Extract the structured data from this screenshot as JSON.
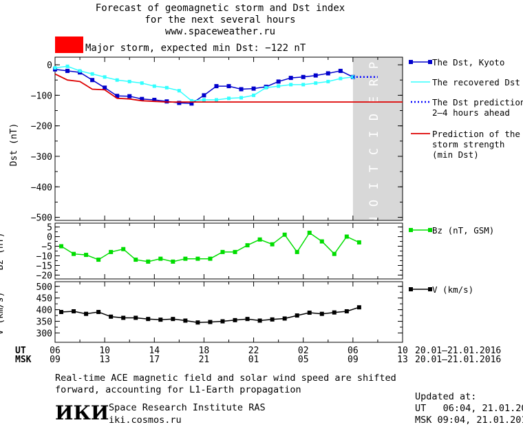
{
  "header": {
    "title_line1": "Forecast of geomagnetic storm and Dst index",
    "title_line2": "for the next several hours",
    "title_line3": "www.spaceweather.ru",
    "storm_label": "Major storm, expected min Dst: −122 nT",
    "storm_color": "#ff0000"
  },
  "colors": {
    "dst": "#0000cc",
    "recovered": "#33ffff",
    "prediction_dots": "#0000ff",
    "min_dst": "#dd0000",
    "bz": "#00dd00",
    "v": "#000000",
    "prediction_zone": "#d8d8d8"
  },
  "prediction_band_label": "PREDICTION",
  "legend": {
    "dst": "The Dst, Kyoto",
    "recovered": "The recovered Dst",
    "prediction_l1": "The Dst prediction",
    "prediction_l2": "2–4 hours ahead",
    "min_l1": "Prediction of the",
    "min_l2": "storm strength",
    "min_l3": "(min Dst)",
    "bz": "Bz (nT, GSM)",
    "v": "V (km/s)"
  },
  "axes": {
    "ut_label": "UT",
    "msk_label": "MSK",
    "ut_ticks": [
      "06",
      "10",
      "14",
      "18",
      "22",
      "02",
      "06",
      "10"
    ],
    "msk_ticks": [
      "09",
      "13",
      "17",
      "21",
      "01",
      "05",
      "09",
      "13"
    ],
    "ut_range": "20.01–21.01.2016",
    "msk_range": "20.01–21.01.2016"
  },
  "chart_data": [
    {
      "type": "line",
      "ylabel": "Dst (nT)",
      "ylim": [
        -510,
        25
      ],
      "xlim_hours": [
        0,
        28
      ],
      "yticks": [
        "0",
        "−100",
        "−200",
        "−300",
        "−400",
        "−500"
      ],
      "prediction_zone_hours": [
        24,
        28
      ],
      "series": [
        {
          "name": "The Dst, Kyoto",
          "x": [
            0,
            1,
            2,
            3,
            4,
            5,
            6,
            7,
            8,
            9,
            10,
            11,
            12,
            13,
            14,
            15,
            16,
            17,
            18,
            19,
            20,
            21,
            22,
            23,
            24
          ],
          "y": [
            -15,
            -20,
            -25,
            -50,
            -75,
            -102,
            -103,
            -112,
            -115,
            -120,
            -125,
            -127,
            -100,
            -70,
            -70,
            -80,
            -78,
            -72,
            -55,
            -43,
            -40,
            -35,
            -28,
            -20,
            -40
          ]
        },
        {
          "name": "The recovered Dst",
          "x": [
            0,
            1,
            2,
            3,
            4,
            5,
            6,
            7,
            8,
            9,
            10,
            11,
            12,
            13,
            14,
            15,
            16,
            17,
            18,
            19,
            20,
            21,
            22,
            23,
            24
          ],
          "y": [
            -10,
            -5,
            -20,
            -30,
            -40,
            -50,
            -55,
            -60,
            -70,
            -75,
            -85,
            -118,
            -115,
            -115,
            -110,
            -108,
            -100,
            -75,
            -70,
            -65,
            -65,
            -60,
            -55,
            -45,
            -40
          ]
        },
        {
          "name": "The Dst prediction 2–4 hours ahead",
          "x": [
            24,
            26
          ],
          "y": [
            -40,
            -40
          ]
        },
        {
          "name": "Prediction of the storm strength (min Dst)",
          "x": [
            0,
            1,
            2,
            3,
            4,
            5,
            6,
            7,
            8,
            9,
            10,
            11,
            28
          ],
          "y": [
            -30,
            -50,
            -55,
            -80,
            -82,
            -110,
            -112,
            -118,
            -120,
            -122,
            -122,
            -122,
            -122
          ]
        }
      ]
    },
    {
      "type": "line",
      "ylabel": "Bz (nT)",
      "ylim": [
        -22,
        7
      ],
      "yticks": [
        "5",
        "0",
        "−5",
        "−10",
        "−15",
        "−20"
      ],
      "series": [
        {
          "name": "Bz (nT, GSM)",
          "x": [
            0.5,
            1.5,
            2.5,
            3.5,
            4.5,
            5.5,
            6.5,
            7.5,
            8.5,
            9.5,
            10.5,
            11.5,
            12.5,
            13.5,
            14.5,
            15.5,
            16.5,
            17.5,
            18.5,
            19.5,
            20.5,
            21.5,
            22.5,
            23.5,
            24.5
          ],
          "y": [
            -5,
            -9,
            -9.5,
            -12,
            -8,
            -6.5,
            -12,
            -13,
            -11.5,
            -13,
            -11.5,
            -11.5,
            -11.5,
            -8,
            -8,
            -4.5,
            -1.5,
            -4,
            1,
            -8,
            2,
            -2.5,
            -9,
            0,
            -3
          ]
        }
      ]
    },
    {
      "type": "line",
      "ylabel": "V (km/s)",
      "ylim": [
        260,
        520
      ],
      "yticks": [
        "500",
        "450",
        "400",
        "350",
        "300"
      ],
      "series": [
        {
          "name": "V (km/s)",
          "x": [
            0.5,
            1.5,
            2.5,
            3.5,
            4.5,
            5.5,
            6.5,
            7.5,
            8.5,
            9.5,
            10.5,
            11.5,
            12.5,
            13.5,
            14.5,
            15.5,
            16.5,
            17.5,
            18.5,
            19.5,
            20.5,
            21.5,
            22.5,
            23.5,
            24.5
          ],
          "y": [
            390,
            393,
            382,
            390,
            370,
            365,
            365,
            360,
            357,
            360,
            353,
            345,
            347,
            350,
            355,
            360,
            353,
            358,
            362,
            375,
            387,
            382,
            388,
            393,
            410
          ]
        }
      ]
    }
  ],
  "footer": {
    "note_l1": "Real-time ACE magnetic field and solar wind speed are shifted",
    "note_l2": "forward, accounting for L1-Earth propagation",
    "logo": "ИКИ",
    "institute": "Space Research Institute RAS",
    "site": "iki.cosmos.ru",
    "updated_label": "Updated at:",
    "updated_ut": "UT   06:04, 21.01.2016",
    "updated_msk": "MSK 09:04, 21.01.2016"
  }
}
